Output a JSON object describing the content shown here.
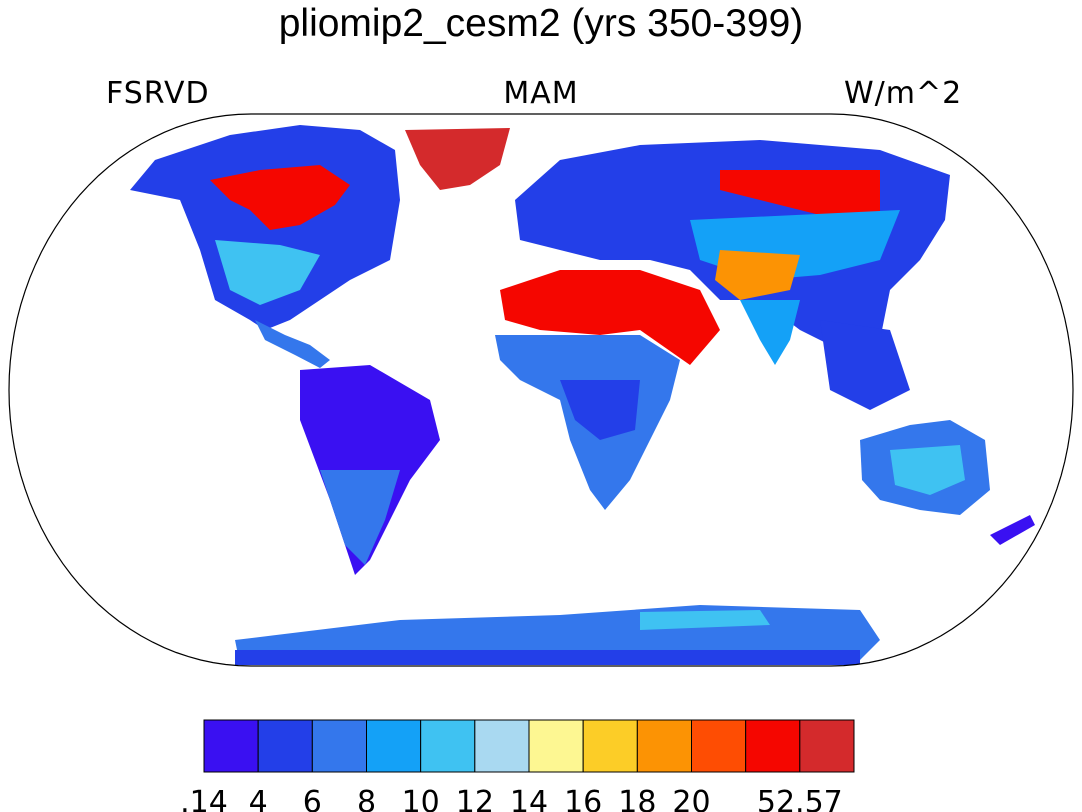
{
  "title": "pliomip2_cesm2 (yrs 350-399)",
  "variable": "FSRVD",
  "season": "MAM",
  "units": "W/m^2",
  "projection": "robinson",
  "colorbar": {
    "tick_labels": [
      ".14",
      "4",
      "6",
      "8",
      "10",
      "12",
      "14",
      "16",
      "18",
      "20",
      "52.57"
    ],
    "tick_values": [
      0.14,
      4,
      6,
      8,
      10,
      12,
      14,
      16,
      18,
      20,
      52.57
    ],
    "colors": [
      "#3a10f2",
      "#233fe8",
      "#3477ec",
      "#14a1f7",
      "#3fc2f2",
      "#a9d9f1",
      "#fdf792",
      "#fccd27",
      "#fc9304",
      "#fe4d03",
      "#f50600",
      "#d42a2c"
    ]
  },
  "land_color_hint": {
    "ocean": "#ffffff",
    "coastline": "#000000"
  }
}
